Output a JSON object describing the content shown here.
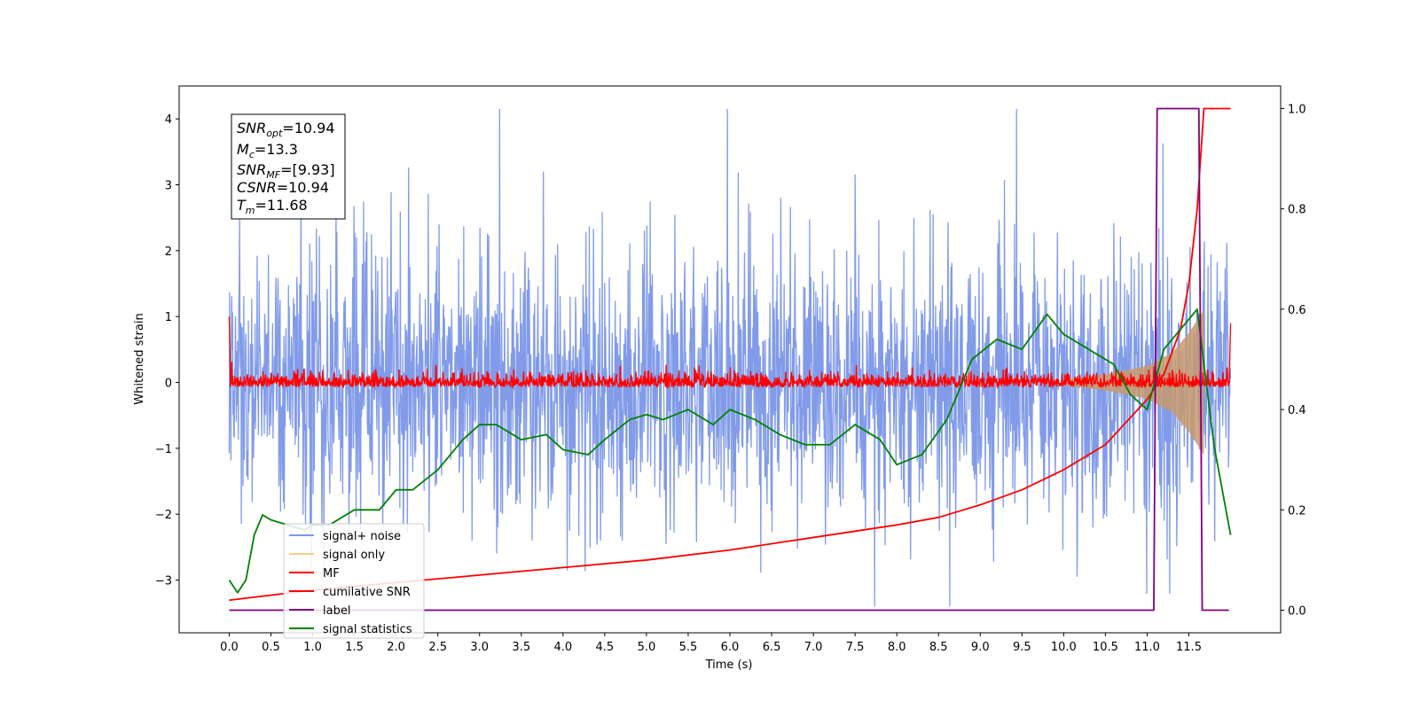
{
  "chart_data": {
    "type": "line",
    "xlabel": "Time (s)",
    "ylabel": "Whitened strain",
    "xlim": [
      -0.6,
      12.6
    ],
    "ylim": [
      -3.8,
      4.5
    ],
    "y2lim": [
      -0.045,
      1.045
    ],
    "grid": false,
    "legend_position": "lower-left",
    "xticks": [
      "0.0",
      "0.5",
      "1.0",
      "1.5",
      "2.0",
      "2.5",
      "3.0",
      "3.5",
      "4.0",
      "4.5",
      "5.0",
      "5.5",
      "6.0",
      "6.5",
      "7.0",
      "7.5",
      "8.0",
      "8.5",
      "9.0",
      "9.5",
      "10.0",
      "10.5",
      "11.0",
      "11.5"
    ],
    "yticks": [
      "−3",
      "−2",
      "−1",
      "0",
      "1",
      "2",
      "3",
      "4"
    ],
    "y2ticks": [
      "0.0",
      "0.2",
      "0.4",
      "0.6",
      "0.8",
      "1.0"
    ],
    "annotation": {
      "snr_opt": "10.94",
      "mc": "13.3",
      "snr_mf": "[9.93]",
      "csnr": "10.94",
      "tm": "11.68"
    },
    "series": [
      {
        "name": "signal+ noise",
        "color": "#7a96e8",
        "axis": "left",
        "kind": "noise band",
        "approx_envelope": {
          "x": [
            0.0,
            12.0
          ],
          "mean": 0,
          "typical_amplitude": 1.6
        }
      },
      {
        "name": "signal only",
        "color": "#f5c06a",
        "axis": "left",
        "kind": "chirp",
        "approx_points": {
          "x": [
            10.0,
            10.5,
            11.0,
            11.3,
            11.5,
            11.68
          ],
          "amplitude": [
            0.05,
            0.12,
            0.25,
            0.45,
            0.75,
            1.1
          ]
        }
      },
      {
        "name": "MF",
        "color": "#ff0000",
        "axis": "left",
        "kind": "noise band",
        "approx_envelope": {
          "x": [
            0.0,
            12.0
          ],
          "mean": 0,
          "typical_amplitude": 0.12
        }
      },
      {
        "name": "cumilative SNR",
        "color": "#ff0000",
        "axis": "right",
        "x": [
          0.0,
          1.0,
          2.0,
          3.0,
          4.0,
          5.0,
          6.0,
          7.0,
          8.0,
          8.5,
          9.0,
          9.5,
          10.0,
          10.5,
          11.0,
          11.2,
          11.4,
          11.5,
          11.6,
          11.68,
          12.0
        ],
        "y": [
          0.02,
          0.04,
          0.055,
          0.07,
          0.085,
          0.1,
          0.12,
          0.145,
          0.17,
          0.185,
          0.21,
          0.24,
          0.28,
          0.33,
          0.42,
          0.47,
          0.56,
          0.65,
          0.8,
          1.0,
          1.0
        ]
      },
      {
        "name": "label",
        "color": "#800080",
        "axis": "right",
        "x": [
          0.0,
          11.08,
          11.12,
          11.62,
          11.66,
          11.98
        ],
        "y": [
          0.0,
          0.0,
          1.0,
          1.0,
          0.0,
          0.0
        ]
      },
      {
        "name": "signal statistics",
        "color": "#008000",
        "axis": "right",
        "x": [
          0.0,
          0.1,
          0.2,
          0.3,
          0.4,
          0.5,
          0.7,
          0.9,
          1.0,
          1.2,
          1.5,
          1.8,
          2.0,
          2.2,
          2.5,
          2.8,
          3.0,
          3.2,
          3.5,
          3.8,
          4.0,
          4.3,
          4.5,
          4.8,
          5.0,
          5.2,
          5.5,
          5.8,
          6.0,
          6.3,
          6.6,
          6.9,
          7.2,
          7.5,
          7.8,
          8.0,
          8.3,
          8.6,
          8.9,
          9.2,
          9.5,
          9.8,
          10.0,
          10.3,
          10.6,
          10.8,
          11.0,
          11.2,
          11.4,
          11.6,
          11.8,
          12.0
        ],
        "y": [
          0.06,
          0.035,
          0.06,
          0.15,
          0.19,
          0.18,
          0.17,
          0.16,
          0.17,
          0.17,
          0.2,
          0.2,
          0.24,
          0.24,
          0.28,
          0.34,
          0.37,
          0.37,
          0.34,
          0.35,
          0.32,
          0.31,
          0.34,
          0.38,
          0.39,
          0.38,
          0.4,
          0.37,
          0.4,
          0.38,
          0.35,
          0.33,
          0.33,
          0.37,
          0.34,
          0.29,
          0.31,
          0.38,
          0.5,
          0.54,
          0.52,
          0.59,
          0.55,
          0.52,
          0.49,
          0.43,
          0.4,
          0.52,
          0.56,
          0.6,
          0.33,
          0.15
        ]
      }
    ]
  }
}
